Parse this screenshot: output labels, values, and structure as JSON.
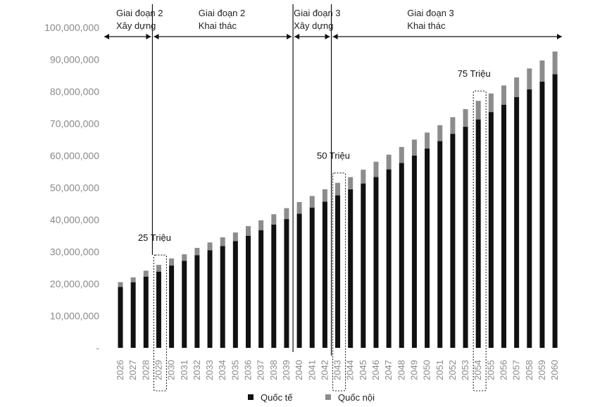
{
  "chart_data": {
    "type": "bar",
    "stacked": true,
    "categories": [
      "2026",
      "2027",
      "2028",
      "2029",
      "2030",
      "2031",
      "2032",
      "2033",
      "2034",
      "2035",
      "2036",
      "2037",
      "2038",
      "2039",
      "2040",
      "2041",
      "2042",
      "2043",
      "2044",
      "2045",
      "2046",
      "2047",
      "2048",
      "2049",
      "2050",
      "2051",
      "2052",
      "2053",
      "2054",
      "2055",
      "2056",
      "2057",
      "2058",
      "2059",
      "2060"
    ],
    "series": [
      {
        "name": "Quốc tế",
        "color": "#111111",
        "values": [
          19000000,
          20500000,
          22200000,
          23800000,
          25700000,
          27200000,
          28900000,
          30500000,
          31800000,
          33300000,
          35000000,
          36700000,
          38500000,
          40200000,
          41900000,
          43800000,
          45600000,
          47600000,
          49500000,
          51300000,
          53300000,
          55700000,
          57700000,
          60000000,
          62200000,
          64500000,
          66800000,
          69000000,
          71300000,
          73600000,
          75900000,
          78300000,
          80700000,
          83100000,
          85400000
        ]
      },
      {
        "name": "Quốc nội",
        "color": "#8c8c8c",
        "values": [
          1500000,
          1500000,
          1900000,
          2100000,
          2200000,
          2000000,
          2300000,
          2400000,
          2700000,
          2700000,
          3000000,
          3100000,
          3200000,
          3400000,
          3600000,
          3600000,
          3900000,
          3900000,
          3800000,
          4300000,
          4800000,
          4600000,
          5000000,
          5000000,
          5000000,
          5000000,
          5200000,
          5500000,
          5800000,
          5800000,
          6000000,
          6100000,
          6500000,
          6600000,
          7100000
        ]
      }
    ],
    "ylim": [
      0,
      100000000
    ],
    "yticks": [
      "-",
      "10,000,000",
      "20,000,000",
      "30,000,000",
      "40,000,000",
      "50,000,000",
      "60,000,000",
      "70,000,000",
      "80,000,000",
      "90,000,000",
      "100,000,000"
    ],
    "phases": [
      {
        "line1": "Giai đoạn  2",
        "line2": "Xây dựng",
        "from": "2026",
        "to": "2029",
        "line1_anchor": "2026",
        "line2_anchor": "2026"
      },
      {
        "line1": "Giai đoạn 2",
        "line2": "Khai thác",
        "from": "2029",
        "to": "2040",
        "line1_anchor": "2031",
        "line2_anchor": "2031"
      },
      {
        "line1": "Giai đoạn 3",
        "line2": "Xây dựng",
        "from": "2040",
        "to": "2043",
        "line1_anchor": "2040",
        "line2_anchor": "2040"
      },
      {
        "line1": "Giai đoạn 3",
        "line2": "Khai thác",
        "from": "2043",
        "to": "2060",
        "line1_anchor": "2048",
        "line2_anchor": "2048"
      }
    ],
    "annotations": [
      {
        "label": "25 Triệu",
        "year": "2029"
      },
      {
        "label": "50 Triệu",
        "year": "2043"
      },
      {
        "label": "75 Triệu",
        "year": "2054"
      }
    ],
    "legend": {
      "position": "bottom",
      "items": [
        "Quốc tế",
        "Quốc nội"
      ]
    }
  }
}
